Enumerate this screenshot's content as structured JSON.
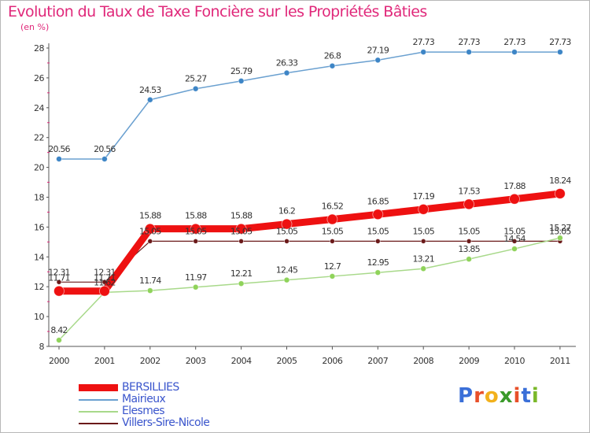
{
  "title": "Evolution du Taux de Taxe Foncière sur les Propriétés Bâties",
  "unit_label": "(en %)",
  "logo": {
    "text": "Proxiti",
    "letters": [
      "P",
      "r",
      "o",
      "x",
      "i",
      "t",
      "i"
    ],
    "colors": [
      "#3a6fd8",
      "#e8502a",
      "#f2b11c",
      "#3a9a2a",
      "#e8502a",
      "#3a6fd8",
      "#7ab82a"
    ]
  },
  "colors": {
    "title": "#e0287a",
    "legend_text": "#3a55cc",
    "axis": "#555555",
    "grid_tick": "#e0287a"
  },
  "chart_data": {
    "type": "line",
    "title": "Evolution du Taux de Taxe Foncière sur les Propriétés Bâties",
    "ylabel": "(en %)",
    "xlabel": "",
    "ylim": [
      8,
      28
    ],
    "yticks": [
      8,
      10,
      12,
      14,
      16,
      18,
      20,
      22,
      24,
      26,
      28
    ],
    "categories": [
      "2000",
      "2001",
      "2002",
      "2003",
      "2004",
      "2005",
      "2006",
      "2007",
      "2008",
      "2009",
      "2010",
      "2011"
    ],
    "series": [
      {
        "name": "Villers-Sire-Nicole",
        "color": "#6b1a1a",
        "marker": "#6b1a1a",
        "width": 1.2,
        "radius": 3,
        "values": [
          12.31,
          12.31,
          15.05,
          15.05,
          15.05,
          15.05,
          15.05,
          15.05,
          15.05,
          15.05,
          15.05,
          15.05
        ],
        "labels": [
          "12.31",
          "12.31",
          "15.05",
          "15.05",
          "15.05",
          "15.05",
          "15.05",
          "15.05",
          "15.05",
          "15.05",
          "15.05",
          "15.05"
        ]
      },
      {
        "name": "Elesmes",
        "color": "#a8d98a",
        "marker": "#8fd35a",
        "width": 1.5,
        "radius": 3.5,
        "values": [
          8.42,
          11.62,
          11.74,
          11.97,
          12.21,
          12.45,
          12.7,
          12.95,
          13.21,
          13.85,
          14.54,
          15.27
        ],
        "labels": [
          "8.42",
          "11.62",
          "11.74",
          "11.97",
          "12.21",
          "12.45",
          "12.7",
          "12.95",
          "13.21",
          "13.85",
          "14.54",
          "15.27"
        ]
      },
      {
        "name": "Mairieux",
        "color": "#6aa0d0",
        "marker": "#3d85c6",
        "width": 1.5,
        "radius": 3.5,
        "values": [
          20.56,
          20.56,
          24.53,
          25.27,
          25.79,
          26.33,
          26.8,
          27.19,
          27.73,
          27.73,
          27.73,
          27.73
        ],
        "labels": [
          "20.56",
          "20.56",
          "24.53",
          "25.27",
          "25.79",
          "26.33",
          "26.8",
          "27.19",
          "27.73",
          "27.73",
          "27.73",
          "27.73"
        ]
      },
      {
        "name": "BERSILLIES",
        "color": "#ee1111",
        "marker": "#ee1111",
        "width": 9,
        "radius": 6.5,
        "values": [
          11.71,
          11.71,
          15.88,
          15.88,
          15.88,
          16.2,
          16.52,
          16.85,
          17.19,
          17.53,
          17.88,
          18.24
        ],
        "labels": [
          "11.71",
          "11.71",
          "15.88",
          "15.88",
          "15.88",
          "16.2",
          "16.52",
          "16.85",
          "17.19",
          "17.53",
          "17.88",
          "18.24"
        ]
      }
    ],
    "legend": [
      "BERSILLIES",
      "Mairieux",
      "Elesmes",
      "Villers-Sire-Nicole"
    ]
  }
}
